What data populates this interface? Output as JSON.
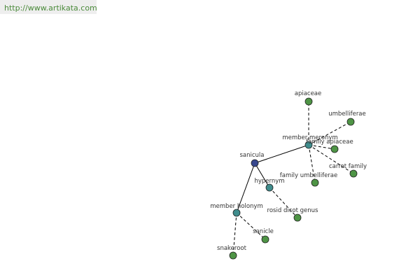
{
  "header": {
    "url": "http://www.artikata.com"
  },
  "nodes": [
    {
      "label": "sanicula"
    },
    {
      "label": "member meronym"
    },
    {
      "label": "hypernym"
    },
    {
      "label": "member holonym"
    },
    {
      "label": "apiaceae"
    },
    {
      "label": "umbelliferae"
    },
    {
      "label": "family apiaceae"
    },
    {
      "label": "carrot family"
    },
    {
      "label": "family umbelliferae"
    },
    {
      "label": "rosid dicot genus"
    },
    {
      "label": "sanicle"
    },
    {
      "label": "snakeroot"
    }
  ]
}
